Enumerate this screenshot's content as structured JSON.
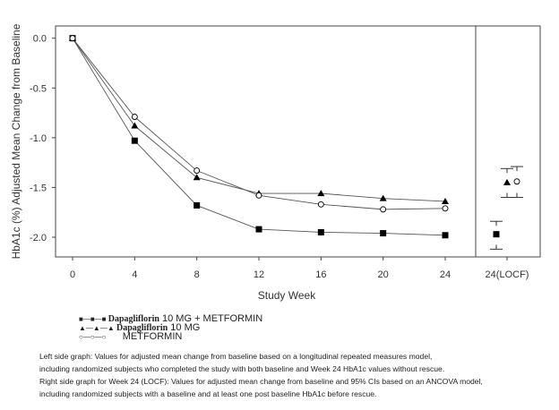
{
  "chart_data": {
    "type": "line",
    "ylabel": "HbA1c (%) Adjusted Mean Change from Baseline",
    "xlabel": "Study Week",
    "x": [
      0,
      4,
      8,
      12,
      16,
      20,
      24
    ],
    "xticks": [
      "0",
      "4",
      "8",
      "12",
      "16",
      "20",
      "24"
    ],
    "locf_label": "24(LOCF)",
    "yticks": [
      "0.0",
      "-0.5",
      "-1.0",
      "-1.5",
      "-2.0"
    ],
    "ytick_values": [
      0,
      -0.5,
      -1,
      -1.5,
      -2
    ],
    "ylim": [
      -2.2,
      0.05
    ],
    "series": [
      {
        "name": "Dapagliflozin 10 MG + METFORMIN",
        "marker": "square",
        "values": [
          0,
          -1.03,
          -1.68,
          -1.92,
          -1.95,
          -1.96,
          -1.98
        ],
        "locf": {
          "mean": -1.97,
          "ci": [
            -2.12,
            -1.84
          ]
        }
      },
      {
        "name": "Dapagliflozin 10 MG",
        "marker": "triangle",
        "values": [
          0,
          -0.88,
          -1.4,
          -1.56,
          -1.56,
          -1.61,
          -1.64
        ],
        "locf": {
          "mean": -1.45,
          "ci": [
            -1.6,
            -1.31
          ]
        }
      },
      {
        "name": "METFORMIN",
        "marker": "circle",
        "values": [
          0,
          -0.79,
          -1.33,
          -1.58,
          -1.67,
          -1.72,
          -1.71
        ],
        "locf": {
          "mean": -1.44,
          "ci": [
            -1.6,
            -1.29
          ]
        }
      }
    ],
    "legend": [
      {
        "drug": "Dapagliflorin",
        "rest": "10 MG + METFORMIN"
      },
      {
        "drug": "Dapagliflorin",
        "rest": "10 MG"
      },
      {
        "drug": "",
        "rest": "METFORMIN"
      }
    ],
    "notes": [
      "Left side graph: Values for adjusted mean change from baseline based on a longitudinal repeated measures model,",
      "including randomized subjects who completed the study with both baseline and Week 24 HbA1c values without rescue.",
      "Right side graph for Week 24 (LOCF): Values for adjusted mean change from baseline and 95% CIs based on an ANCOVA model,",
      "including randomized subjects with a baseline and at least one post baseline HbA1c before rescue."
    ]
  }
}
